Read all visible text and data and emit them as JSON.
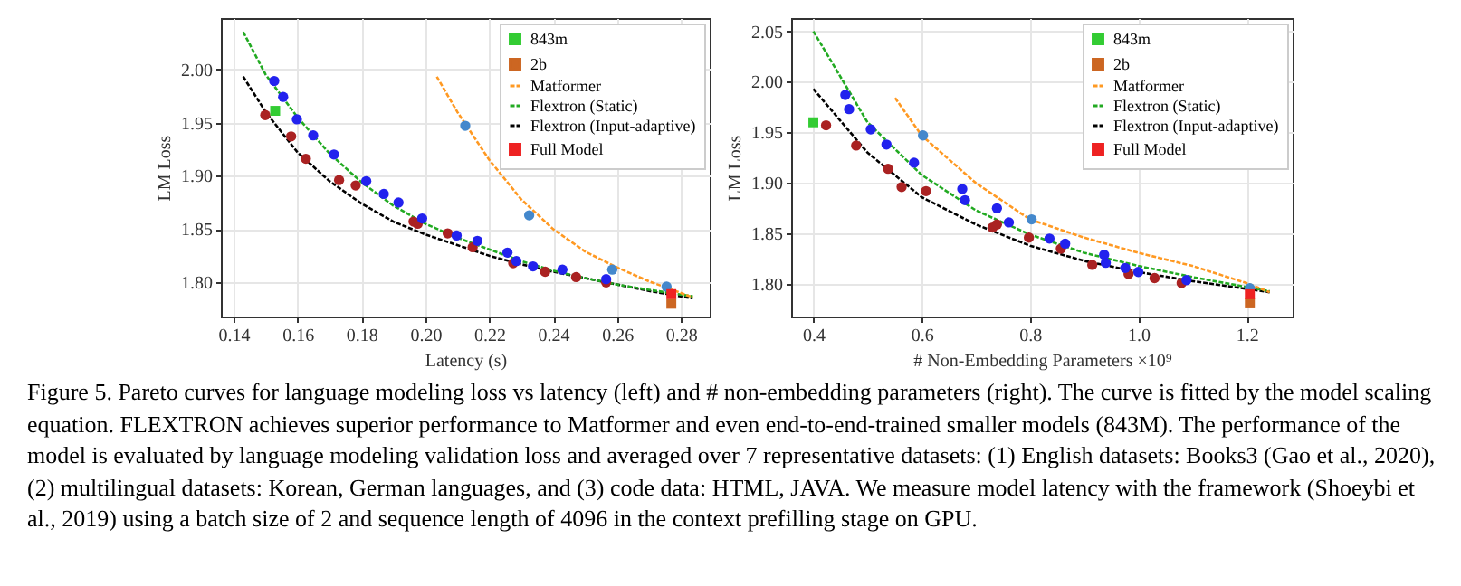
{
  "chart_data": [
    {
      "type": "scatter",
      "xlabel": "Latency (s)",
      "ylabel": "LM Loss",
      "xlim": [
        0.136,
        0.289
      ],
      "ylim": [
        1.768,
        2.048
      ],
      "xticks": [
        0.14,
        0.16,
        0.18,
        {
          "value": 0.2,
          "label": "0.20"
        },
        0.22,
        0.24,
        0.26,
        0.28
      ],
      "yticks": [
        {
          "value": 1.8,
          "label": "1.80"
        },
        1.85,
        {
          "value": 1.9,
          "label": "1.90"
        },
        1.95,
        {
          "value": 2,
          "label": "2.00"
        }
      ],
      "grid": true,
      "legend": "top right",
      "annotations": [
        "Figure 5. Pareto curves for language modeling loss vs latency (left) and # non-embedding parameters (right). The curve is fitted by the model scaling equation. FLEXTRON achieves superior performance to Matformer and even end-to-end-trained smaller models (843M). The performance of the model is evaluated by language modeling validation loss and averaged over 7 representative datasets: (1) English datasets: Books3 (Gao et al., 2020), (2) multilingual datasets: Korean, German languages, and (3) code data: HTML, JAVA. We measure model latency with the framework (Shoeybi et al., 2019) using a batch size of 2 and sequence length of 4096 in the context prefilling stage on GPU."
      ],
      "series": [
        {
          "name": "843m",
          "type": "scatter",
          "marker": "square",
          "color": "#33cc33",
          "x": [
            0.153
          ],
          "values": [
            1.961
          ]
        },
        {
          "name": "2b",
          "type": "scatter",
          "marker": "square",
          "color": "#cc6622",
          "x": [
            0.277
          ],
          "values": [
            1.78
          ]
        },
        {
          "name": "Matformer",
          "type": "line",
          "line_style": "dashed",
          "color": "#ff9922",
          "x": [
            0.2036,
            0.21,
            0.22,
            0.23,
            0.24,
            0.25,
            0.26,
            0.27,
            0.2837
          ],
          "values": [
            1.993,
            1.96,
            1.915,
            1.878,
            1.85,
            1.829,
            1.814,
            1.801,
            1.786
          ]
        },
        {
          "name": "Flextron (Static)",
          "type": "line",
          "line_style": "dashed",
          "color": "#22aa22",
          "x": [
            0.143,
            0.15,
            0.16,
            0.17,
            0.18,
            0.19,
            0.2,
            0.21,
            0.22,
            0.23,
            0.24,
            0.25,
            0.26,
            0.27,
            0.2837
          ],
          "values": [
            2.035,
            1.995,
            1.955,
            1.921,
            1.894,
            1.872,
            1.855,
            1.842,
            1.831,
            1.82,
            1.811,
            1.804,
            1.798,
            1.793,
            1.787
          ]
        },
        {
          "name": "Flextron (Input-adaptive)",
          "type": "line",
          "line_style": "dashed",
          "color": "#000000",
          "x": [
            0.143,
            0.15,
            0.16,
            0.17,
            0.18,
            0.19,
            0.2,
            0.21,
            0.22,
            0.23,
            0.24,
            0.25,
            0.26,
            0.27,
            0.2837
          ],
          "values": [
            1.993,
            1.96,
            1.922,
            1.895,
            1.874,
            1.857,
            1.845,
            1.835,
            1.825,
            1.817,
            1.81,
            1.804,
            1.798,
            1.792,
            1.785
          ]
        },
        {
          "name": "Full Model",
          "type": "scatter",
          "marker": "square",
          "color": "#ee2222",
          "x": [
            0.277
          ],
          "values": [
            1.789
          ]
        },
        {
          "type": "scatter",
          "marker": "circle",
          "color": "#4488cc",
          "x": [
            0.2125,
            0.2325,
            0.2585,
            0.2755
          ],
          "values": [
            1.947,
            1.863,
            1.812,
            1.796
          ]
        },
        {
          "type": "scatter",
          "marker": "circle",
          "color": "#2222ee",
          "x": [
            0.1527,
            0.1555,
            0.1598,
            0.1649,
            0.1714,
            0.1815,
            0.187,
            0.1916,
            0.199,
            0.2098,
            0.2163,
            0.2257,
            0.2285,
            0.2337,
            0.2429,
            0.2566
          ],
          "values": [
            1.989,
            1.974,
            1.953,
            1.938,
            1.92,
            1.895,
            1.883,
            1.875,
            1.86,
            1.844,
            1.839,
            1.828,
            1.82,
            1.815,
            1.812,
            1.803
          ]
        },
        {
          "type": "scatter",
          "marker": "circle",
          "color": "#aa2222",
          "x": [
            0.1499,
            0.158,
            0.1626,
            0.173,
            0.1782,
            0.1963,
            0.1976,
            0.207,
            0.2148,
            0.2275,
            0.2375,
            0.2472,
            0.2566
          ],
          "values": [
            1.957,
            1.937,
            1.916,
            1.896,
            1.891,
            1.857,
            1.855,
            1.846,
            1.833,
            1.818,
            1.81,
            1.805,
            1.8
          ]
        }
      ]
    },
    {
      "type": "scatter",
      "xlabel": "# Non-Embedding Parameters ×10⁹",
      "ylabel": "LM Loss",
      "xlim": [
        0.359,
        1.285
      ],
      "ylim": [
        1.768,
        2.063
      ],
      "xticks": [
        0.4,
        0.6,
        0.8,
        {
          "value": 1,
          "label": "1.0"
        },
        1.2
      ],
      "yticks": [
        {
          "value": 1.8,
          "label": "1.80"
        },
        1.85,
        {
          "value": 1.9,
          "label": "1.90"
        },
        1.95,
        {
          "value": 2,
          "label": "2.00"
        },
        2.05
      ],
      "grid": true,
      "legend": "top right",
      "series": [
        {
          "name": "843m",
          "type": "scatter",
          "marker": "square",
          "color": "#33cc33",
          "x": [
            0.4
          ],
          "values": [
            1.96
          ]
        },
        {
          "name": "2b",
          "type": "scatter",
          "marker": "square",
          "color": "#cc6622",
          "x": [
            1.206
          ],
          "values": [
            1.781
          ]
        },
        {
          "name": "Matformer",
          "type": "line",
          "line_style": "dashed",
          "color": "#ff9922",
          "x": [
            0.551,
            0.6,
            0.7,
            0.8,
            0.9,
            1.0,
            1.1,
            1.2,
            1.2426
          ],
          "values": [
            1.984,
            1.947,
            1.9,
            1.864,
            1.846,
            1.831,
            1.818,
            1.801,
            1.792
          ]
        },
        {
          "name": "Flextron (Static)",
          "type": "line",
          "line_style": "dashed",
          "color": "#22aa22",
          "x": [
            0.4,
            0.5,
            0.6,
            0.7,
            0.8,
            0.9,
            1.0,
            1.1,
            1.2426
          ],
          "values": [
            2.05,
            1.96,
            1.908,
            1.873,
            1.849,
            1.831,
            1.818,
            1.807,
            1.793
          ]
        },
        {
          "name": "Flextron (Input-adaptive)",
          "type": "line",
          "line_style": "dashed",
          "color": "#000000",
          "x": [
            0.4,
            0.5,
            0.6,
            0.7,
            0.8,
            0.9,
            1.0,
            1.1,
            1.2426
          ],
          "values": [
            1.993,
            1.93,
            1.886,
            1.859,
            1.838,
            1.823,
            1.812,
            1.803,
            1.792
          ]
        },
        {
          "name": "Full Model",
          "type": "scatter",
          "marker": "square",
          "color": "#ee2222",
          "x": [
            1.206
          ],
          "values": [
            1.79
          ]
        },
        {
          "type": "scatter",
          "marker": "circle",
          "color": "#4488cc",
          "x": [
            0.6025,
            0.803,
            0.94,
            1.206
          ],
          "values": [
            1.947,
            1.864,
            null,
            1.796
          ]
        },
        {
          "type": "scatter",
          "marker": "circle",
          "color": "#2222ee",
          "x": [
            0.459,
            0.466,
            0.506,
            0.535,
            0.586,
            0.675,
            0.68,
            0.739,
            0.761,
            0.836,
            0.865,
            0.937,
            0.94,
            0.976,
            1.0,
            1.089
          ],
          "values": [
            1.987,
            1.973,
            1.953,
            1.938,
            1.92,
            1.894,
            1.883,
            1.875,
            1.861,
            1.845,
            1.84,
            1.829,
            1.821,
            1.816,
            1.812,
            1.804
          ]
        },
        {
          "type": "scatter",
          "marker": "circle",
          "color": "#aa2222",
          "x": [
            0.4235,
            0.479,
            0.538,
            0.563,
            0.608,
            0.731,
            0.739,
            0.798,
            0.857,
            0.915,
            0.982,
            1.03,
            1.08
          ],
          "values": [
            1.957,
            1.937,
            1.914,
            1.896,
            1.892,
            1.856,
            1.859,
            1.846,
            1.835,
            1.819,
            1.81,
            1.806,
            1.801
          ]
        }
      ]
    }
  ]
}
